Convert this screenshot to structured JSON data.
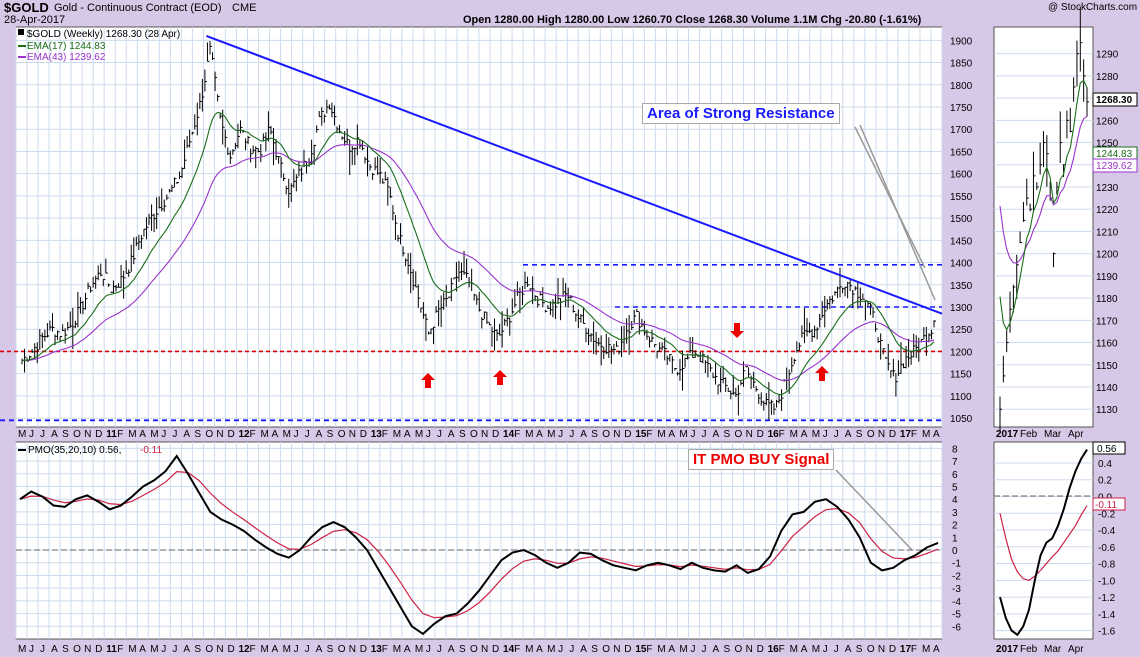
{
  "header": {
    "symbol": "$GOLD",
    "name": "Gold - Continuous Contract (EOD)",
    "exchange": "CME",
    "date": "28-Apr-2017",
    "copyright": "@ StockCharts.com",
    "quote": "Open 1280.00  High 1280.00  Low 1260.70  Close 1268.30  Volume 1.1M  Chg -20.80 (-1.61%)"
  },
  "legend": {
    "price": "$GOLD (Weekly) 1268.30 (28 Apr)",
    "ema17": "EMA(17) 1244.83",
    "ema43": "EMA(43) 1239.62",
    "pmo_label": "PMO(35,20,10) 0.56,",
    "pmo_signal": "-0.11"
  },
  "annotations": {
    "resistance": "Area of Strong Resistance",
    "pmo_signal": "IT PMO BUY Signal"
  },
  "side_labels": {
    "last": "1268.30",
    "ema17": "1244.83",
    "ema43": "1239.62",
    "pmo": "0.56",
    "signal": "-0.11"
  },
  "colors": {
    "panel_bg": "#d8c8e8",
    "ema17": "#1a6e1a",
    "ema43": "#9933cc",
    "trendline": "#1a1aff",
    "support": "#e00000",
    "pmo": "#000000",
    "pmo_signal": "#cc2244"
  },
  "chart_data": [
    {
      "type": "ohlc",
      "panel": "main",
      "ylim": [
        1030,
        1930
      ],
      "y_ticks": [
        1050,
        1100,
        1150,
        1200,
        1250,
        1300,
        1350,
        1400,
        1450,
        1500,
        1550,
        1600,
        1650,
        1700,
        1750,
        1800,
        1850,
        1900
      ],
      "x_labels": [
        "M",
        "J",
        "J",
        "A",
        "S",
        "O",
        "N",
        "D",
        "11",
        "F",
        "M",
        "A",
        "M",
        "J",
        "J",
        "A",
        "S",
        "O",
        "N",
        "D",
        "12",
        "F",
        "M",
        "A",
        "M",
        "J",
        "J",
        "A",
        "S",
        "O",
        "N",
        "D",
        "13",
        "F",
        "M",
        "A",
        "M",
        "J",
        "J",
        "A",
        "S",
        "O",
        "N",
        "D",
        "14",
        "F",
        "M",
        "A",
        "M",
        "J",
        "J",
        "A",
        "S",
        "O",
        "N",
        "D",
        "15",
        "F",
        "M",
        "A",
        "M",
        "J",
        "J",
        "A",
        "S",
        "O",
        "N",
        "D",
        "16",
        "F",
        "M",
        "A",
        "M",
        "J",
        "J",
        "A",
        "S",
        "O",
        "N",
        "D",
        "17",
        "F",
        "M",
        "A"
      ],
      "x_start": "2010-05",
      "close_path": [
        1180,
        1200,
        1230,
        1250,
        1240,
        1260,
        1300,
        1350,
        1380,
        1340,
        1360,
        1400,
        1460,
        1500,
        1530,
        1560,
        1600,
        1680,
        1760,
        1880,
        1720,
        1640,
        1700,
        1660,
        1650,
        1700,
        1620,
        1560,
        1600,
        1640,
        1720,
        1760,
        1700,
        1660,
        1680,
        1620,
        1600,
        1560,
        1460,
        1400,
        1320,
        1240,
        1290,
        1320,
        1380,
        1360,
        1300,
        1260,
        1230,
        1270,
        1320,
        1360,
        1320,
        1300,
        1310,
        1330,
        1280,
        1250,
        1220,
        1210,
        1200,
        1250,
        1280,
        1240,
        1210,
        1190,
        1160,
        1180,
        1200,
        1170,
        1140,
        1120,
        1100,
        1160,
        1120,
        1080,
        1070,
        1130,
        1200,
        1240,
        1250,
        1300,
        1330,
        1360,
        1340,
        1320,
        1270,
        1180,
        1140,
        1180,
        1200,
        1230,
        1260
      ],
      "series": [
        {
          "name": "EMA(17)",
          "last": 1244.83
        },
        {
          "name": "EMA(43)",
          "last": 1239.62
        }
      ],
      "last_close": 1268.3,
      "resistance_levels": [
        1395,
        1300
      ],
      "support_level": 1200,
      "base_level": 1045,
      "trendline": [
        [
          0.13,
          1910
        ],
        [
          1.0,
          1285
        ]
      ]
    },
    {
      "type": "line",
      "panel": "pmo",
      "ylim": [
        -7,
        8.5
      ],
      "y_ticks": [
        8,
        7,
        6,
        5,
        4,
        3,
        2,
        1,
        0,
        -1,
        -2,
        -3,
        -4,
        -5,
        -6
      ],
      "series": [
        {
          "name": "PMO(35,20,10)",
          "last": 0.56
        },
        {
          "name": "Signal",
          "last": -0.11
        }
      ],
      "pmo_path": [
        4,
        4.6,
        4.2,
        3.5,
        3.4,
        4.0,
        4.3,
        3.8,
        3.2,
        3.5,
        4.2,
        5.0,
        5.5,
        6.2,
        7.4,
        6.0,
        4.5,
        3.0,
        2.4,
        2.0,
        1.5,
        0.8,
        0.2,
        -0.3,
        -0.6,
        0,
        1.0,
        1.8,
        2.2,
        1.8,
        1.0,
        0,
        -1.5,
        -3.0,
        -4.5,
        -6.0,
        -6.6,
        -5.8,
        -5.2,
        -5.0,
        -4.2,
        -3.2,
        -2.0,
        -0.8,
        -0.2,
        0,
        -0.4,
        -1.0,
        -1.4,
        -1.0,
        -0.2,
        -0.3,
        -0.8,
        -1.2,
        -1.4,
        -1.6,
        -1.2,
        -1.0,
        -1.2,
        -1.5,
        -1.0,
        -1.4,
        -1.6,
        -1.7,
        -1.2,
        -1.8,
        -1.5,
        -0.5,
        1.5,
        2.8,
        3.0,
        3.8,
        4.0,
        3.4,
        2.4,
        1.0,
        -1.0,
        -1.6,
        -1.4,
        -0.8,
        -0.4,
        0.2,
        0.56
      ]
    },
    {
      "type": "ohlc",
      "panel": "inset-price",
      "ylim": [
        1122,
        1302
      ],
      "y_ticks": [
        1290,
        1280,
        1270,
        1260,
        1250,
        1240,
        1230,
        1220,
        1210,
        1200,
        1190,
        1180,
        1170,
        1160,
        1150,
        1140,
        1130
      ],
      "x_labels": [
        "2017",
        "Feb",
        "Mar",
        "Apr"
      ],
      "close_path": [
        1130,
        1145,
        1160,
        1175,
        1185,
        1195,
        1205,
        1215,
        1225,
        1220,
        1235,
        1230,
        1240,
        1250,
        1245,
        1225,
        1200,
        1230,
        1250,
        1240,
        1260,
        1255,
        1275,
        1290,
        1295,
        1280,
        1268.3
      ]
    },
    {
      "type": "line",
      "panel": "inset-pmo",
      "ylim": [
        -1.7,
        0.65
      ],
      "y_ticks": [
        0.4,
        0.2,
        0.0,
        -0.2,
        -0.4,
        -0.6,
        -0.8,
        -1.0,
        -1.2,
        -1.4,
        -1.6
      ],
      "x_labels": [
        "2017",
        "Feb",
        "Mar",
        "Apr"
      ]
    }
  ]
}
